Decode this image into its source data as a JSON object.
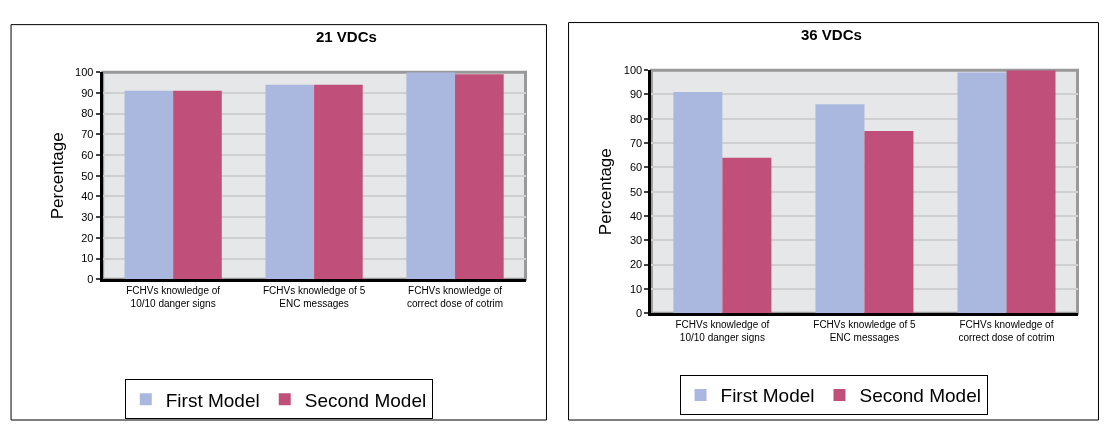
{
  "chart_data": [
    {
      "type": "bar",
      "title": "21 VDCs",
      "ylabel": "Percentage",
      "categories": [
        "FCHVs knowledge of\n10/10 danger signs",
        "FCHVs knowledge of 5\nENC messages",
        "FCHVs knowledge of\ncorrect dose of cotrim"
      ],
      "series": [
        {
          "name": "First Model",
          "color": "#aab8e0",
          "values": [
            91,
            94,
            100
          ]
        },
        {
          "name": "Second Model",
          "color": "#c0507a",
          "values": [
            91,
            94,
            99
          ]
        }
      ],
      "ylim": [
        0,
        100
      ],
      "yticks": [
        0,
        10,
        20,
        30,
        40,
        50,
        60,
        70,
        80,
        90,
        100
      ],
      "grid": "y",
      "legend": "bottom"
    },
    {
      "type": "bar",
      "title": "36 VDCs",
      "ylabel": "Percentage",
      "categories": [
        "FCHVs knowledge of\n10/10 danger signs",
        "FCHVs knowledge of 5\nENC messages",
        "FCHVs knowledge of\ncorrect dose of cotrim"
      ],
      "series": [
        {
          "name": "First Model",
          "color": "#aab8e0",
          "values": [
            91,
            86,
            99
          ]
        },
        {
          "name": "Second Model",
          "color": "#c0507a",
          "values": [
            64,
            75,
            100
          ]
        }
      ],
      "ylim": [
        0,
        100
      ],
      "yticks": [
        0,
        10,
        20,
        30,
        40,
        50,
        60,
        70,
        80,
        90,
        100
      ],
      "grid": "y",
      "legend": "bottom"
    }
  ]
}
